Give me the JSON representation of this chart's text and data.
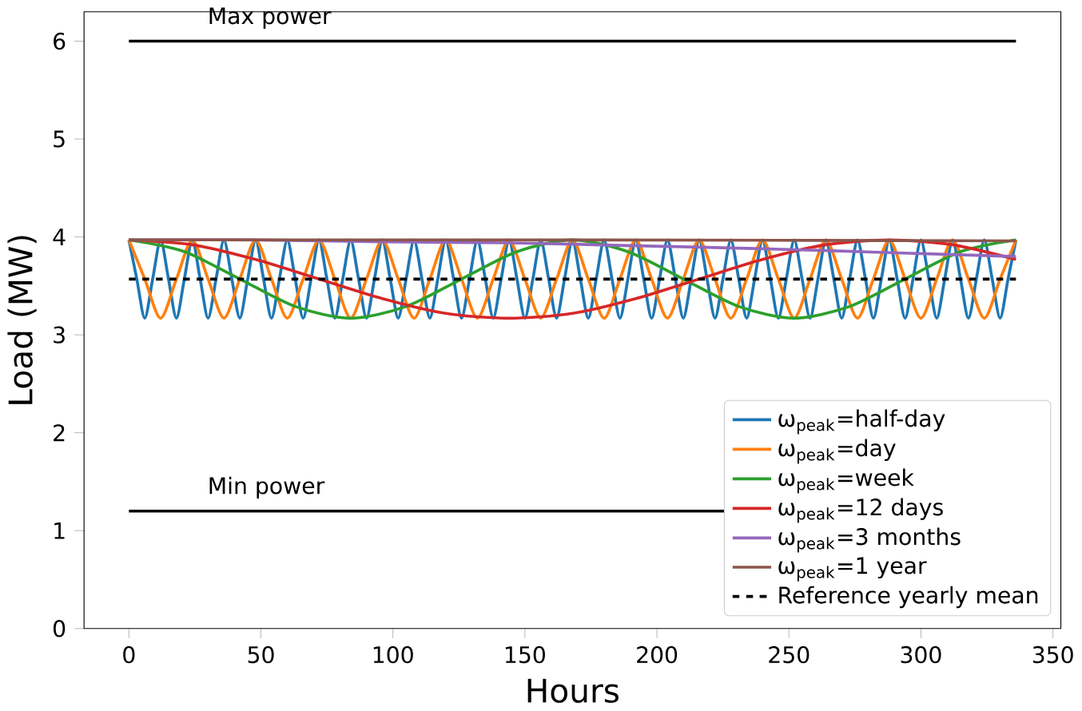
{
  "chart_data": {
    "type": "line",
    "xlabel": "Hours",
    "ylabel": "Load (MW)",
    "xlim": [
      -17,
      353
    ],
    "ylim": [
      0,
      6.3
    ],
    "xticks": [
      0,
      50,
      100,
      150,
      200,
      250,
      300,
      350
    ],
    "yticks": [
      0,
      1,
      2,
      3,
      4,
      5,
      6
    ],
    "grid": false,
    "legend": "bottom right",
    "series": [
      {
        "name": "ω$_{peak}$=half-day",
        "color": "#1f77b4",
        "x": [
          0,
          3,
          6,
          9,
          12,
          15,
          18,
          21,
          24,
          27,
          30,
          33,
          36,
          39,
          42,
          45,
          48,
          51,
          54,
          57,
          60,
          63,
          66,
          69,
          72,
          75,
          78,
          81,
          84,
          87,
          90,
          93,
          96,
          99,
          102,
          105,
          108,
          111,
          114,
          117,
          120,
          123,
          126,
          129,
          132,
          135,
          138,
          141,
          144,
          147,
          150,
          153,
          156,
          159,
          162,
          165,
          168,
          171,
          174,
          177,
          180,
          183,
          186,
          189,
          192,
          195,
          198,
          201,
          204,
          207,
          210,
          213,
          216,
          219,
          222,
          225,
          228,
          231,
          234,
          237,
          240,
          243,
          246,
          249,
          252,
          255,
          258,
          261,
          264,
          267,
          270,
          273,
          276,
          279,
          282,
          285,
          288,
          291,
          294,
          297,
          300,
          303,
          306,
          309,
          312,
          315,
          318,
          321,
          324,
          327,
          330,
          333,
          336
        ],
        "values": [
          3.97,
          3.57,
          3.17,
          3.57,
          3.97,
          3.57,
          3.17,
          3.57,
          3.97,
          3.57,
          3.17,
          3.57,
          3.97,
          3.57,
          3.17,
          3.57,
          3.97,
          3.57,
          3.17,
          3.57,
          3.97,
          3.57,
          3.17,
          3.57,
          3.97,
          3.57,
          3.17,
          3.57,
          3.97,
          3.57,
          3.17,
          3.57,
          3.97,
          3.57,
          3.17,
          3.57,
          3.97,
          3.57,
          3.17,
          3.57,
          3.97,
          3.57,
          3.17,
          3.57,
          3.97,
          3.57,
          3.17,
          3.57,
          3.97,
          3.57,
          3.17,
          3.57,
          3.97,
          3.57,
          3.17,
          3.57,
          3.97,
          3.57,
          3.17,
          3.57,
          3.97,
          3.57,
          3.17,
          3.57,
          3.97,
          3.57,
          3.17,
          3.57,
          3.97,
          3.57,
          3.17,
          3.57,
          3.97,
          3.57,
          3.17,
          3.57,
          3.97,
          3.57,
          3.17,
          3.57,
          3.97,
          3.57,
          3.17,
          3.57,
          3.97,
          3.57,
          3.17,
          3.57,
          3.97,
          3.57,
          3.17,
          3.57,
          3.97,
          3.57,
          3.17,
          3.57,
          3.97,
          3.57,
          3.17,
          3.57,
          3.97,
          3.57,
          3.17,
          3.57,
          3.97,
          3.57,
          3.17,
          3.57,
          3.97,
          3.57,
          3.17,
          3.57,
          3.97
        ]
      },
      {
        "name": "ω$_{peak}$=day",
        "color": "#ff7f0e",
        "x": [
          0,
          6,
          12,
          18,
          24,
          30,
          36,
          42,
          48,
          54,
          60,
          66,
          72,
          78,
          84,
          90,
          96,
          102,
          108,
          114,
          120,
          126,
          132,
          138,
          144,
          150,
          156,
          162,
          168,
          174,
          180,
          186,
          192,
          198,
          204,
          210,
          216,
          222,
          228,
          234,
          240,
          246,
          252,
          258,
          264,
          270,
          276,
          282,
          288,
          294,
          300,
          306,
          312,
          318,
          324,
          330,
          336
        ],
        "values": [
          3.97,
          3.57,
          3.17,
          3.57,
          3.97,
          3.57,
          3.17,
          3.57,
          3.97,
          3.57,
          3.17,
          3.57,
          3.97,
          3.57,
          3.17,
          3.57,
          3.97,
          3.57,
          3.17,
          3.57,
          3.97,
          3.57,
          3.17,
          3.57,
          3.97,
          3.57,
          3.17,
          3.57,
          3.97,
          3.57,
          3.17,
          3.57,
          3.97,
          3.57,
          3.17,
          3.57,
          3.97,
          3.57,
          3.17,
          3.57,
          3.97,
          3.57,
          3.17,
          3.57,
          3.97,
          3.57,
          3.17,
          3.57,
          3.97,
          3.57,
          3.17,
          3.57,
          3.97,
          3.57,
          3.17,
          3.57,
          3.97
        ]
      },
      {
        "name": "ω$_{peak}$=week",
        "color": "#2ca02c",
        "x": [
          0,
          21,
          42,
          63,
          84,
          105,
          126,
          147,
          168,
          189,
          210,
          231,
          252,
          273,
          294,
          315,
          336
        ],
        "values": [
          3.97,
          3.85,
          3.57,
          3.29,
          3.17,
          3.29,
          3.57,
          3.85,
          3.97,
          3.85,
          3.57,
          3.29,
          3.17,
          3.29,
          3.57,
          3.85,
          3.97
        ]
      },
      {
        "name": "ω$_{peak}$=12 days",
        "color": "#d62728",
        "x": [
          0,
          24,
          48,
          72,
          96,
          120,
          144,
          168,
          192,
          216,
          240,
          264,
          288,
          312,
          336
        ],
        "values": [
          3.97,
          3.92,
          3.77,
          3.57,
          3.37,
          3.22,
          3.17,
          3.22,
          3.37,
          3.57,
          3.77,
          3.92,
          3.97,
          3.92,
          3.77
        ]
      },
      {
        "name": "ω$_{peak}$=3 months",
        "color": "#9467bd",
        "x": [
          0,
          48,
          96,
          144,
          192,
          240,
          288,
          336
        ],
        "values": [
          3.97,
          3.97,
          3.95,
          3.94,
          3.91,
          3.88,
          3.84,
          3.8
        ]
      },
      {
        "name": "ω$_{peak}$=1 year",
        "color": "#8c564b",
        "x": [
          0,
          168,
          336
        ],
        "values": [
          3.97,
          3.97,
          3.96
        ]
      },
      {
        "name": "Reference yearly mean",
        "color": "#000000",
        "line_style": "dashed",
        "x": [
          0,
          336
        ],
        "values": [
          3.57,
          3.57
        ]
      }
    ],
    "ref_lines": [
      {
        "axis": "y",
        "value": 6,
        "label": "Max power",
        "color": "#000000"
      },
      {
        "axis": "y",
        "value": 1.2,
        "label": "Min power",
        "color": "#000000"
      }
    ]
  }
}
